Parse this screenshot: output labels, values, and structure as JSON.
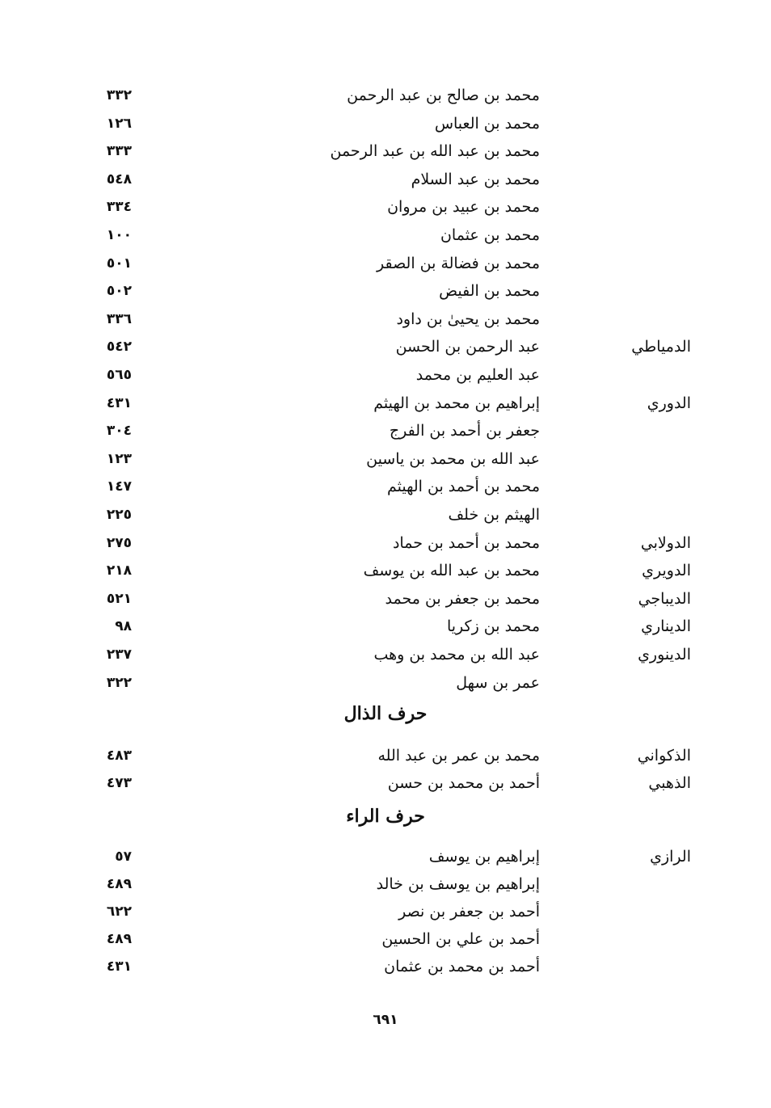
{
  "sections": [
    {
      "heading": "",
      "entries": [
        {
          "nisba": "",
          "name": "محمد بن صالح بن عبد الرحمن",
          "page": "٣٣٢"
        },
        {
          "nisba": "",
          "name": "محمد بن العباس",
          "page": "١٢٦"
        },
        {
          "nisba": "",
          "name": "محمد بن عبد الله بن عبد الرحمن",
          "page": "٣٣٣"
        },
        {
          "nisba": "",
          "name": "محمد بن عبد السلام",
          "page": "٥٤٨"
        },
        {
          "nisba": "",
          "name": "محمد بن عبيد بن مروان",
          "page": "٣٣٤"
        },
        {
          "nisba": "",
          "name": "محمد بن عثمان",
          "page": "١٠٠"
        },
        {
          "nisba": "",
          "name": "محمد بن فضالة بن الصقر",
          "page": "٥٠١"
        },
        {
          "nisba": "",
          "name": "محمد بن الفيض",
          "page": "٥٠٢"
        },
        {
          "nisba": "",
          "name": "محمد بن يحيىٰ بن داود",
          "page": "٣٣٦"
        },
        {
          "nisba": "الدمياطي",
          "name": "عبد الرحمن بن الحسن",
          "page": "٥٤٢"
        },
        {
          "nisba": "",
          "name": "عبد العليم بن محمد",
          "page": "٥٦٥"
        },
        {
          "nisba": "الدوري",
          "name": "إبراهيم بن محمد بن الهيثم",
          "page": "٤٣١"
        },
        {
          "nisba": "",
          "name": "جعفر بن أحمد بن الفرج",
          "page": "٣٠٤"
        },
        {
          "nisba": "",
          "name": "عبد الله بن محمد بن ياسين",
          "page": "١٢٣"
        },
        {
          "nisba": "",
          "name": "محمد بن أحمد بن الهيثم",
          "page": "١٤٧"
        },
        {
          "nisba": "",
          "name": "الهيثم بن خلف",
          "page": "٢٢٥"
        },
        {
          "nisba": "الدولابي",
          "name": "محمد بن أحمد بن حماد",
          "page": "٢٧٥"
        },
        {
          "nisba": "الدويري",
          "name": "محمد بن عبد الله بن يوسف",
          "page": "٢١٨"
        },
        {
          "nisba": "الديباجي",
          "name": "محمد بن جعفر بن محمد",
          "page": "٥٢١"
        },
        {
          "nisba": "الديناري",
          "name": "محمد بن زكريا",
          "page": "٩٨"
        },
        {
          "nisba": "الدينوري",
          "name": "عبد الله بن محمد بن وهب",
          "page": "٢٣٧"
        },
        {
          "nisba": "",
          "name": "عمر بن سهل",
          "page": "٣٢٢"
        }
      ]
    },
    {
      "heading": "حرف الذال",
      "entries": [
        {
          "nisba": "الذكواني",
          "name": "محمد بن عمر بن عبد الله",
          "page": "٤٨٣"
        },
        {
          "nisba": "الذهبي",
          "name": "أحمد بن محمد بن حسن",
          "page": "٤٧٣"
        }
      ]
    },
    {
      "heading": "حرف الراء",
      "entries": [
        {
          "nisba": "الرازي",
          "name": "إبراهيم بن يوسف",
          "page": "٥٧"
        },
        {
          "nisba": "",
          "name": "إبراهيم بن يوسف بن خالد",
          "page": "٤٨٩"
        },
        {
          "nisba": "",
          "name": "أحمد بن جعفر بن نصر",
          "page": "٦٢٢"
        },
        {
          "nisba": "",
          "name": "أحمد بن علي بن الحسين",
          "page": "٤٨٩"
        },
        {
          "nisba": "",
          "name": "أحمد بن محمد بن عثمان",
          "page": "٤٣١"
        }
      ]
    }
  ],
  "page_number": "٦٩١"
}
